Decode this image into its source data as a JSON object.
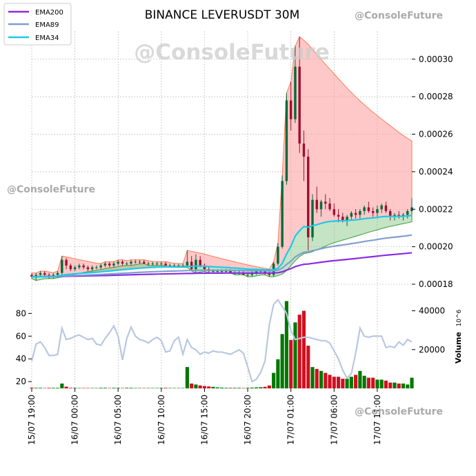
{
  "chart_data": {
    "type": "candlestick",
    "title": "BINANCE LEVERUSDT 30M",
    "watermark": "@ConsoleFuture",
    "legend": {
      "placement": "top-left",
      "entries": [
        {
          "name": "EMA200",
          "color": "#8a2be2"
        },
        {
          "name": "EMA89",
          "color": "#7f9fcf"
        },
        {
          "name": "EMA34",
          "color": "#1ec8e8"
        }
      ]
    },
    "price_axis": {
      "side": "right",
      "ylim": [
        0.00018,
        0.000315
      ],
      "ticks": [
        "0.00018",
        "0.00020",
        "0.00022",
        "0.00024",
        "0.00026",
        "0.00028",
        "0.00030"
      ]
    },
    "volume_axis": {
      "side": "right",
      "label": "Volume",
      "exponent": "10^6",
      "ylim": [
        0,
        48000
      ],
      "ticks": [
        "20000",
        "40000"
      ]
    },
    "rsi_axis": {
      "side": "left",
      "ylim": [
        14,
        96
      ],
      "ticks": [
        "20",
        "40",
        "60",
        "80"
      ]
    },
    "x_ticks": [
      "15/07 19:00",
      "16/07 00:00",
      "16/07 05:00",
      "16/07 10:00",
      "16/07 15:00",
      "16/07 20:00",
      "17/07 01:00",
      "17/07 06:00",
      "17/07 11:00"
    ],
    "x_tick_index": [
      0,
      10,
      20,
      30,
      40,
      50,
      60,
      70,
      80
    ],
    "grid": true,
    "colors": {
      "up": "#006b3c",
      "down": "#a01030",
      "vol_up": "#007800",
      "vol_down": "#d01020",
      "band_red": "#ff9a9a",
      "band_green": "#7cc47c",
      "rsi": "#b8c8e0"
    },
    "candles": [
      [
        0.000185,
        0.000186,
        0.000183,
        0.000184
      ],
      [
        0.000184,
        0.000186,
        0.000182,
        0.000185
      ],
      [
        0.000185,
        0.000187,
        0.000184,
        0.000186
      ],
      [
        0.000186,
        0.000187,
        0.000184,
        0.000185
      ],
      [
        0.000185,
        0.000186,
        0.000183,
        0.000184
      ],
      [
        0.000184,
        0.000186,
        0.000183,
        0.000185
      ],
      [
        0.000185,
        0.000187,
        0.000184,
        0.000186
      ],
      [
        0.000186,
        0.000195,
        0.000185,
        0.000193
      ],
      [
        0.000193,
        0.000194,
        0.000188,
        0.00019
      ],
      [
        0.00019,
        0.000191,
        0.000187,
        0.000188
      ],
      [
        0.000188,
        0.00019,
        0.000187,
        0.000189
      ],
      [
        0.000189,
        0.000191,
        0.000188,
        0.00019
      ],
      [
        0.00019,
        0.000191,
        0.000188,
        0.000189
      ],
      [
        0.000189,
        0.00019,
        0.000187,
        0.000188
      ],
      [
        0.000188,
        0.00019,
        0.000187,
        0.000189
      ],
      [
        0.000189,
        0.00019,
        0.000188,
        0.000189
      ],
      [
        0.000189,
        0.000191,
        0.000188,
        0.00019
      ],
      [
        0.00019,
        0.000192,
        0.000189,
        0.000191
      ],
      [
        0.000191,
        0.000192,
        0.000189,
        0.00019
      ],
      [
        0.00019,
        0.000192,
        0.000189,
        0.000191
      ],
      [
        0.000191,
        0.000193,
        0.00019,
        0.000192
      ],
      [
        0.000192,
        0.000193,
        0.00019,
        0.000191
      ],
      [
        0.000191,
        0.000192,
        0.00019,
        0.000191
      ],
      [
        0.000191,
        0.000193,
        0.00019,
        0.000192
      ],
      [
        0.000192,
        0.000193,
        0.000191,
        0.000192
      ],
      [
        0.000192,
        0.000193,
        0.000191,
        0.000192
      ],
      [
        0.000192,
        0.000193,
        0.000191,
        0.000191
      ],
      [
        0.000191,
        0.000192,
        0.00019,
        0.000191
      ],
      [
        0.000191,
        0.000192,
        0.00019,
        0.000191
      ],
      [
        0.000191,
        0.000192,
        0.00019,
        0.000191
      ],
      [
        0.000191,
        0.000192,
        0.00019,
        0.000191
      ],
      [
        0.000191,
        0.000192,
        0.00019,
        0.00019
      ],
      [
        0.00019,
        0.000191,
        0.000189,
        0.00019
      ],
      [
        0.00019,
        0.000191,
        0.000189,
        0.00019
      ],
      [
        0.00019,
        0.000191,
        0.000189,
        0.00019
      ],
      [
        0.00019,
        0.000191,
        0.000189,
        0.00019
      ],
      [
        0.00019,
        0.000198,
        0.000189,
        0.000192
      ],
      [
        0.000192,
        0.000195,
        0.000187,
        0.000188
      ],
      [
        0.000188,
        0.000196,
        0.000186,
        0.000193
      ],
      [
        0.000193,
        0.000195,
        0.000189,
        0.00019
      ],
      [
        0.00019,
        0.000191,
        0.000187,
        0.000188
      ],
      [
        0.000188,
        0.000189,
        0.000186,
        0.000187
      ],
      [
        0.000187,
        0.000188,
        0.000186,
        0.000187
      ],
      [
        0.000187,
        0.000188,
        0.000186,
        0.000187
      ],
      [
        0.000187,
        0.000188,
        0.000186,
        0.000187
      ],
      [
        0.000187,
        0.000188,
        0.000186,
        0.000187
      ],
      [
        0.000187,
        0.000188,
        0.000186,
        0.000186
      ],
      [
        0.000186,
        0.000187,
        0.000185,
        0.000186
      ],
      [
        0.000186,
        0.000187,
        0.000185,
        0.000186
      ],
      [
        0.000186,
        0.000187,
        0.000185,
        0.000185
      ],
      [
        0.000185,
        0.000186,
        0.000184,
        0.000185
      ],
      [
        0.000185,
        0.000187,
        0.000184,
        0.000186
      ],
      [
        0.000186,
        0.000188,
        0.000185,
        0.000187
      ],
      [
        0.000187,
        0.000188,
        0.000186,
        0.000187
      ],
      [
        0.000187,
        0.000188,
        0.000185,
        0.000186
      ],
      [
        0.000186,
        0.000188,
        0.000184,
        0.000185
      ],
      [
        0.000185,
        0.000192,
        0.000184,
        0.000191
      ],
      [
        0.000191,
        0.000202,
        0.00019,
        0.0002
      ],
      [
        0.0002,
        0.000238,
        0.000199,
        0.000235
      ],
      [
        0.000235,
        0.000282,
        0.000233,
        0.000278
      ],
      [
        0.000278,
        0.000288,
        0.000262,
        0.000268
      ],
      [
        0.000268,
        0.000307,
        0.000266,
        0.000296
      ],
      [
        0.000296,
        0.000312,
        0.00025,
        0.000255
      ],
      [
        0.000255,
        0.000262,
        0.000235,
        0.000248
      ],
      [
        0.000248,
        0.000252,
        0.000198,
        0.000205
      ],
      [
        0.000205,
        0.000228,
        0.000203,
        0.000225
      ],
      [
        0.000225,
        0.000232,
        0.000218,
        0.00022
      ],
      [
        0.00022,
        0.000225,
        0.000216,
        0.000224
      ],
      [
        0.000224,
        0.000228,
        0.00022,
        0.000223
      ],
      [
        0.000223,
        0.000226,
        0.000219,
        0.00022
      ],
      [
        0.00022,
        0.000223,
        0.000216,
        0.000217
      ],
      [
        0.000217,
        0.00022,
        0.000213,
        0.000216
      ],
      [
        0.000216,
        0.000218,
        0.000213,
        0.000214
      ],
      [
        0.000214,
        0.000217,
        0.000211,
        0.000216
      ],
      [
        0.000216,
        0.000219,
        0.000214,
        0.000218
      ],
      [
        0.000218,
        0.00022,
        0.000215,
        0.000217
      ],
      [
        0.000217,
        0.00022,
        0.000215,
        0.000219
      ],
      [
        0.000219,
        0.000222,
        0.000217,
        0.000221
      ],
      [
        0.000221,
        0.000224,
        0.000218,
        0.000219
      ],
      [
        0.000219,
        0.000221,
        0.000216,
        0.000218
      ],
      [
        0.000218,
        0.000222,
        0.000216,
        0.00022
      ],
      [
        0.00022,
        0.000223,
        0.000218,
        0.000222
      ],
      [
        0.000222,
        0.000224,
        0.000218,
        0.000219
      ],
      [
        0.000219,
        0.00022,
        0.000214,
        0.000216
      ],
      [
        0.000216,
        0.000218,
        0.000214,
        0.000217
      ],
      [
        0.000217,
        0.000219,
        0.000215,
        0.000216
      ],
      [
        0.000216,
        0.000218,
        0.000214,
        0.000217
      ],
      [
        0.000217,
        0.00022,
        0.000215,
        0.000219
      ],
      [
        0.000219,
        0.000226,
        0.000217,
        0.000221
      ]
    ],
    "volume": [
      400,
      300,
      300,
      200,
      300,
      300,
      300,
      2500,
      900,
      300,
      300,
      200,
      200,
      200,
      200,
      200,
      300,
      300,
      200,
      300,
      300,
      200,
      300,
      300,
      200,
      200,
      200,
      200,
      200,
      200,
      300,
      300,
      200,
      200,
      200,
      200,
      11000,
      2500,
      2000,
      1500,
      1200,
      1000,
      800,
      500,
      400,
      300,
      300,
      300,
      300,
      200,
      300,
      400,
      500,
      600,
      800,
      1500,
      8000,
      15000,
      28000,
      45000,
      25000,
      34000,
      38000,
      40000,
      22000,
      11000,
      10000,
      9000,
      8000,
      7000,
      6000,
      6000,
      5000,
      5000,
      6000,
      7000,
      9000,
      6500,
      5500,
      5500,
      4500,
      4500,
      4000,
      3000,
      3000,
      2500,
      2500,
      2000,
      5500
    ],
    "rsi": [
      38,
      53,
      55,
      50,
      43,
      43,
      44,
      67,
      57,
      58,
      60,
      61,
      59,
      57,
      58,
      53,
      52,
      58,
      63,
      69,
      60,
      39,
      58,
      68,
      60,
      57,
      56,
      54,
      57,
      59,
      56,
      46,
      47,
      56,
      59,
      44,
      57,
      50,
      48,
      44,
      46,
      45,
      47,
      46,
      46,
      45,
      44,
      46,
      48,
      45,
      33,
      20,
      22,
      28,
      38,
      70,
      88,
      92,
      86,
      80,
      65,
      57,
      58,
      59,
      59,
      58,
      57,
      56,
      56,
      54,
      47,
      40,
      30,
      23,
      27,
      45,
      67,
      60,
      59,
      60,
      60,
      60,
      50,
      51,
      50,
      55,
      52,
      57,
      55
    ]
  }
}
